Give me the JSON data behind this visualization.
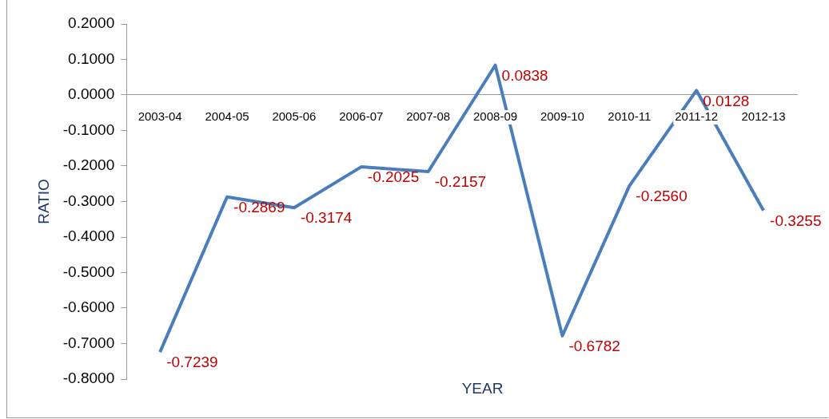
{
  "chart_data": {
    "type": "line",
    "xlabel": "YEAR",
    "ylabel": "RATIO",
    "categories": [
      "2003-04",
      "2004-05",
      "2005-06",
      "2006-07",
      "2007-08",
      "2008-09",
      "2009-10",
      "2010-11",
      "2011-12",
      "2012-13"
    ],
    "series": [
      {
        "color": "#4a7ebb",
        "values": [
          -0.7239,
          -0.2869,
          -0.3174,
          -0.2025,
          -0.2157,
          0.0838,
          -0.6782,
          -0.256,
          0.0128,
          -0.3255
        ],
        "value_labels": [
          "-0.7239",
          "-0.2869",
          "-0.3174",
          "-0.2025",
          "-0.2157",
          "0.0838",
          "-0.6782",
          "-0.2560",
          "0.0128",
          "-0.3255"
        ]
      }
    ],
    "ylim": [
      -0.8,
      0.2
    ],
    "yticks": [
      {
        "value": -0.8,
        "label": "-0.8000"
      },
      {
        "value": -0.7,
        "label": "-0.7000"
      },
      {
        "value": -0.6,
        "label": "-0.6000"
      },
      {
        "value": -0.5,
        "label": "-0.5000"
      },
      {
        "value": -0.4,
        "label": "-0.4000"
      },
      {
        "value": -0.3,
        "label": "-0.3000"
      },
      {
        "value": -0.2,
        "label": "-0.2000"
      },
      {
        "value": -0.1,
        "label": "-0.1000"
      },
      {
        "value": 0,
        "label": "0.0000"
      },
      {
        "value": 0.1,
        "label": "0.1000"
      },
      {
        "value": 0.2,
        "label": "0.2000"
      }
    ],
    "grid": false,
    "legend": false,
    "marker": "none",
    "line_style": "solid"
  }
}
